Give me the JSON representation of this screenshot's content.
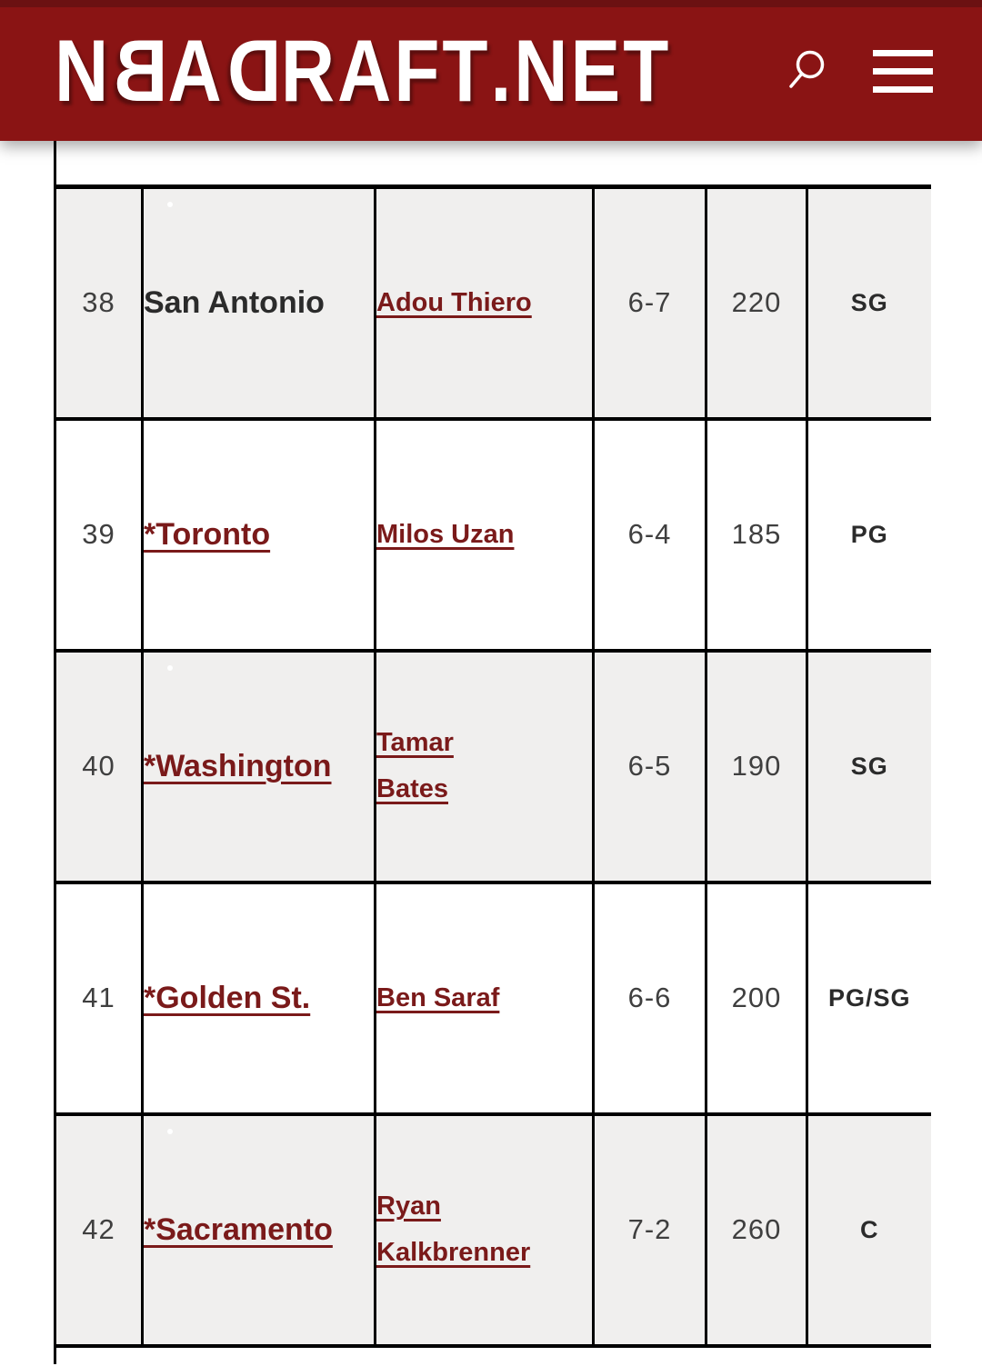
{
  "header": {
    "logo_text": "NBADRAFT.NET",
    "search_icon": "magnifying-glass-icon",
    "menu_icon": "hamburger-menu-icon"
  },
  "table": {
    "rows": [
      {
        "rank": "38",
        "team": "San Antonio",
        "player": "Adou Thiero",
        "height": "6-7",
        "weight": "220",
        "position": "SG"
      },
      {
        "rank": "39",
        "team": "*Toronto",
        "player": "Milos Uzan",
        "height": "6-4",
        "weight": "185",
        "position": "PG"
      },
      {
        "rank": "40",
        "team": "*Washington",
        "player": "Tamar Bates",
        "height": "6-5",
        "weight": "190",
        "position": "SG"
      },
      {
        "rank": "41",
        "team": "*Golden St.",
        "player": "Ben Saraf",
        "height": "6-6",
        "weight": "200",
        "position": "PG/SG"
      },
      {
        "rank": "42",
        "team": "*Sacramento",
        "player": "Ryan Kalkbrenner",
        "height": "7-2",
        "weight": "260",
        "position": "C"
      }
    ]
  },
  "colors": {
    "header_bar": "#8a1414",
    "header_top_strip": "#6b1112",
    "link_red": "#7a1a1a",
    "row_stripe": "#f0efee",
    "table_border": "#000000",
    "number_text": "#3f3f3f",
    "dark_text": "#2b2b2b"
  }
}
